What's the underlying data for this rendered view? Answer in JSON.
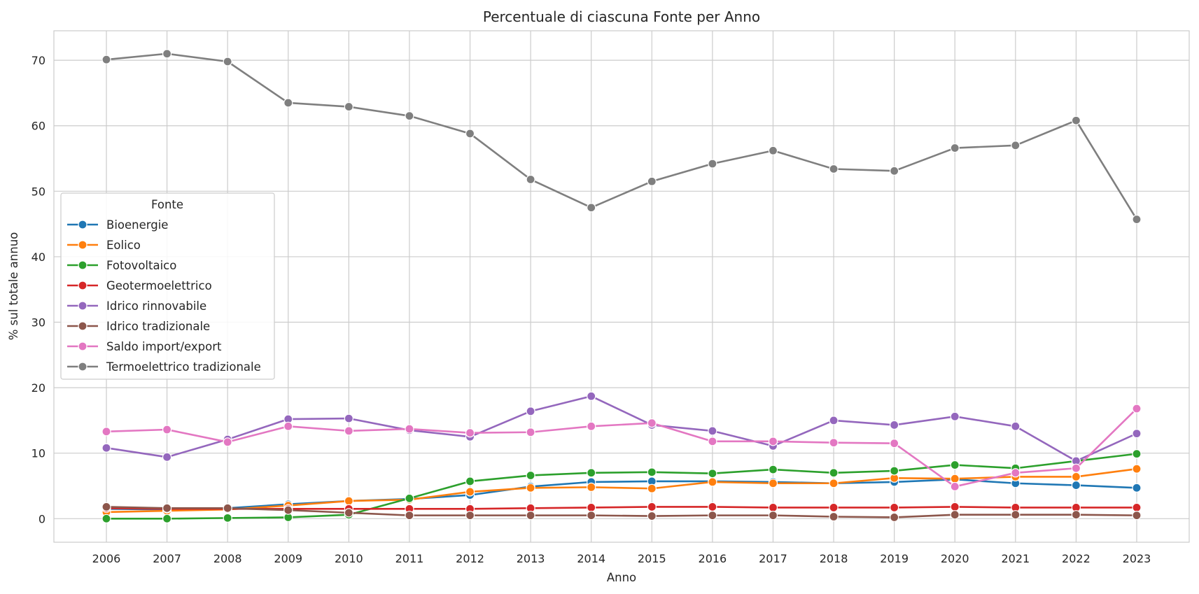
{
  "chart_data": {
    "type": "line",
    "title": "Percentuale di ciascuna Fonte per Anno",
    "xlabel": "Anno",
    "ylabel": "% sul totale annuo",
    "x": [
      2006,
      2007,
      2008,
      2009,
      2010,
      2011,
      2012,
      2013,
      2014,
      2015,
      2016,
      2017,
      2018,
      2019,
      2020,
      2021,
      2022,
      2023
    ],
    "ylim": [
      -3.6,
      74.5
    ],
    "yticks": [
      0,
      10,
      20,
      30,
      40,
      50,
      60,
      70
    ],
    "grid": true,
    "legend": {
      "title": "Fonte",
      "placement": "center-left"
    },
    "series": [
      {
        "name": "Bioenergie",
        "color": "#1f77b4",
        "values": [
          1.5,
          1.4,
          1.6,
          2.2,
          2.7,
          3.0,
          3.6,
          4.9,
          5.6,
          5.7,
          5.7,
          5.6,
          5.4,
          5.6,
          6.0,
          5.4,
          5.1,
          4.7
        ]
      },
      {
        "name": "Eolico",
        "color": "#ff7f0e",
        "values": [
          1.0,
          1.2,
          1.4,
          2.0,
          2.7,
          2.9,
          4.1,
          4.7,
          4.8,
          4.6,
          5.6,
          5.4,
          5.4,
          6.2,
          6.1,
          6.4,
          6.4,
          7.6
        ]
      },
      {
        "name": "Fotovoltaico",
        "color": "#2ca02c",
        "values": [
          0.0,
          0.0,
          0.1,
          0.2,
          0.6,
          3.1,
          5.7,
          6.6,
          7.0,
          7.1,
          6.9,
          7.5,
          7.0,
          7.3,
          8.2,
          7.7,
          8.8,
          9.9
        ]
      },
      {
        "name": "Geotermoelettrico",
        "color": "#d62728",
        "values": [
          1.6,
          1.5,
          1.5,
          1.5,
          1.5,
          1.5,
          1.5,
          1.6,
          1.7,
          1.8,
          1.8,
          1.7,
          1.7,
          1.7,
          1.8,
          1.7,
          1.7,
          1.7
        ]
      },
      {
        "name": "Idrico rinnovabile",
        "color": "#9467bd",
        "values": [
          10.8,
          9.4,
          12.1,
          15.2,
          15.3,
          13.5,
          12.5,
          16.4,
          18.7,
          14.3,
          13.4,
          11.1,
          15.0,
          14.3,
          15.6,
          14.1,
          8.8,
          13.0
        ]
      },
      {
        "name": "Idrico tradizionale",
        "color": "#8c564b",
        "values": [
          1.8,
          1.6,
          1.6,
          1.3,
          0.9,
          0.5,
          0.5,
          0.5,
          0.5,
          0.4,
          0.5,
          0.5,
          0.3,
          0.2,
          0.6,
          0.6,
          0.6,
          0.5
        ]
      },
      {
        "name": "Saldo import/export",
        "color": "#e377c2",
        "values": [
          13.3,
          13.6,
          11.7,
          14.1,
          13.4,
          13.7,
          13.1,
          13.2,
          14.1,
          14.6,
          11.8,
          11.8,
          11.6,
          11.5,
          4.9,
          7.0,
          7.7,
          16.8
        ]
      },
      {
        "name": "Termoelettrico tradizionale",
        "color": "#7f7f7f",
        "values": [
          70.1,
          71.0,
          69.8,
          63.5,
          62.9,
          61.5,
          58.8,
          51.8,
          47.5,
          51.5,
          54.2,
          56.2,
          53.4,
          53.1,
          56.6,
          57.0,
          60.8,
          45.7
        ]
      }
    ]
  }
}
